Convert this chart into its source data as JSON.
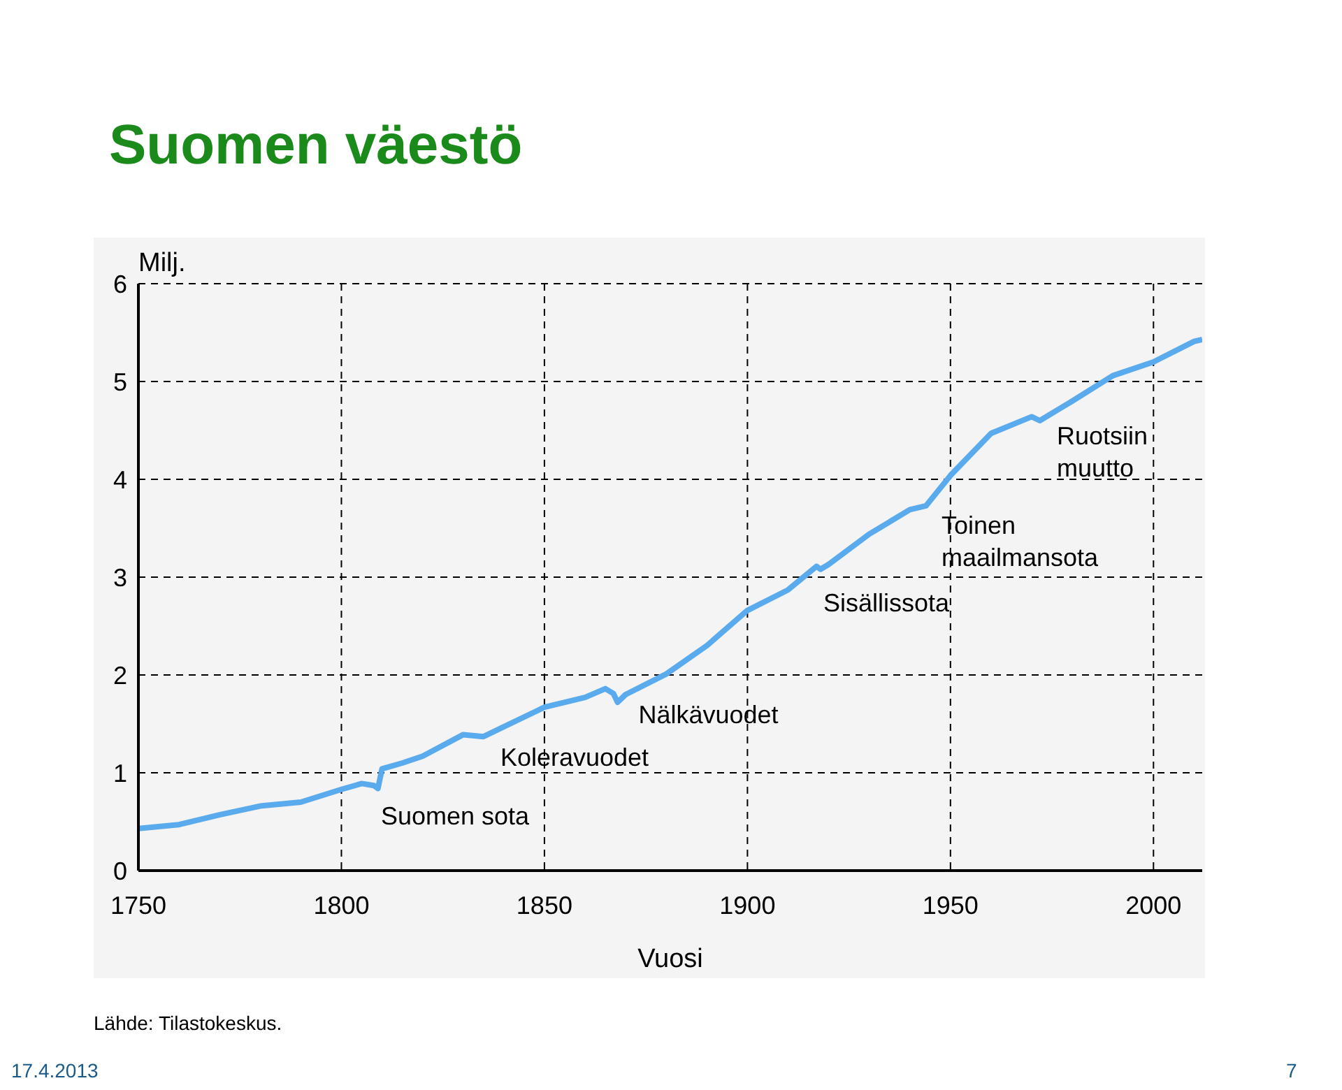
{
  "chart_data": {
    "type": "line",
    "title": "Suomen väestö",
    "ylabel": "Milj.",
    "xlabel": "Vuosi",
    "x": [
      1750,
      1760,
      1770,
      1780,
      1790,
      1800,
      1805,
      1808,
      1809,
      1810,
      1815,
      1820,
      1830,
      1835,
      1840,
      1850,
      1860,
      1865,
      1867,
      1868,
      1870,
      1880,
      1890,
      1900,
      1910,
      1917,
      1918,
      1920,
      1930,
      1940,
      1944,
      1950,
      1960,
      1970,
      1972,
      1980,
      1990,
      2000,
      2010,
      2012
    ],
    "series": [
      {
        "color": "#5aaaee",
        "values": [
          0.43,
          0.47,
          0.57,
          0.66,
          0.7,
          0.83,
          0.89,
          0.87,
          0.84,
          1.04,
          1.1,
          1.17,
          1.39,
          1.37,
          1.47,
          1.67,
          1.77,
          1.86,
          1.81,
          1.72,
          1.8,
          2.01,
          2.3,
          2.66,
          2.87,
          3.11,
          3.08,
          3.13,
          3.44,
          3.69,
          3.73,
          4.04,
          4.47,
          4.64,
          4.6,
          4.8,
          5.06,
          5.2,
          5.41,
          5.43
        ]
      }
    ],
    "xlim": [
      1750,
      2012
    ],
    "xticks": [
      1750,
      1800,
      1850,
      1900,
      1950,
      2000
    ],
    "ylim": [
      0,
      6
    ],
    "yticks": [
      0,
      1,
      2,
      3,
      4,
      5,
      6
    ],
    "grid": true,
    "legend": false,
    "marker": "none",
    "line_style": "solid",
    "annotations": [
      {
        "text": "Suomen sota",
        "x": 1808,
        "y": 0.87
      },
      {
        "text": "Koleravuodet",
        "x": 1855,
        "y": 1.7
      },
      {
        "text": "Nälkävuodet",
        "x": 1868,
        "y": 1.72
      },
      {
        "text": "Sisällissota",
        "x": 1918,
        "y": 3.08
      },
      {
        "text": "Toinen\nmaailmansota",
        "x": 1944,
        "y": 3.73
      },
      {
        "text": "Ruotsiin\nmuutto",
        "x": 1970,
        "y": 4.64
      },
      "Lähde: Tilastokeskus.",
      "17.4.2013",
      "7"
    ]
  }
}
